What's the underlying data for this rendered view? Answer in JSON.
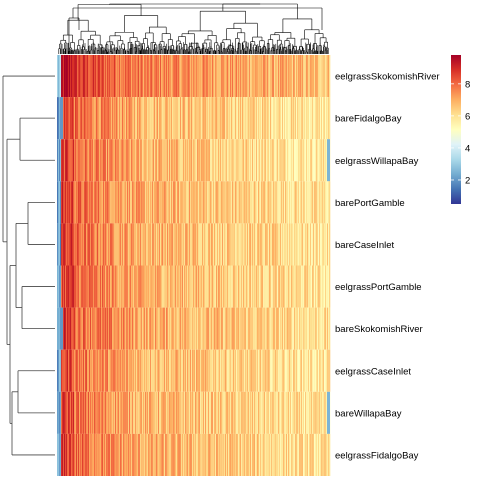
{
  "chart_data": {
    "type": "heatmap",
    "title": "",
    "rows": [
      {
        "label": "eelgrassSkokomishRiver"
      },
      {
        "label": "bareFidalgoBay"
      },
      {
        "label": "eelgrassWillapaBay"
      },
      {
        "label": "barePortGamble"
      },
      {
        "label": "bareCaseInlet"
      },
      {
        "label": "eelgrassPortGamble"
      },
      {
        "label": "bareSkokomishRiver"
      },
      {
        "label": "eelgrassCaseInlet"
      },
      {
        "label": "bareWillapaBay"
      },
      {
        "label": "eelgrassFidalgoBay"
      }
    ],
    "row_means": [
      6.9,
      6.1,
      6.1,
      6.2,
      6.2,
      6.2,
      6.3,
      6.1,
      6.1,
      6.2
    ],
    "color_scale": {
      "min": 0.5,
      "max": 9.8,
      "ticks": [
        2,
        4,
        6,
        8
      ],
      "palette": [
        "#313695",
        "#4575b4",
        "#74add1",
        "#abd9e9",
        "#e0f3f8",
        "#ffffbf",
        "#fee090",
        "#fdae61",
        "#f46d43",
        "#d73027",
        "#a50026"
      ]
    },
    "row_dendrogram": true,
    "column_dendrogram": true,
    "legend_position": "top-right",
    "grid": false
  }
}
